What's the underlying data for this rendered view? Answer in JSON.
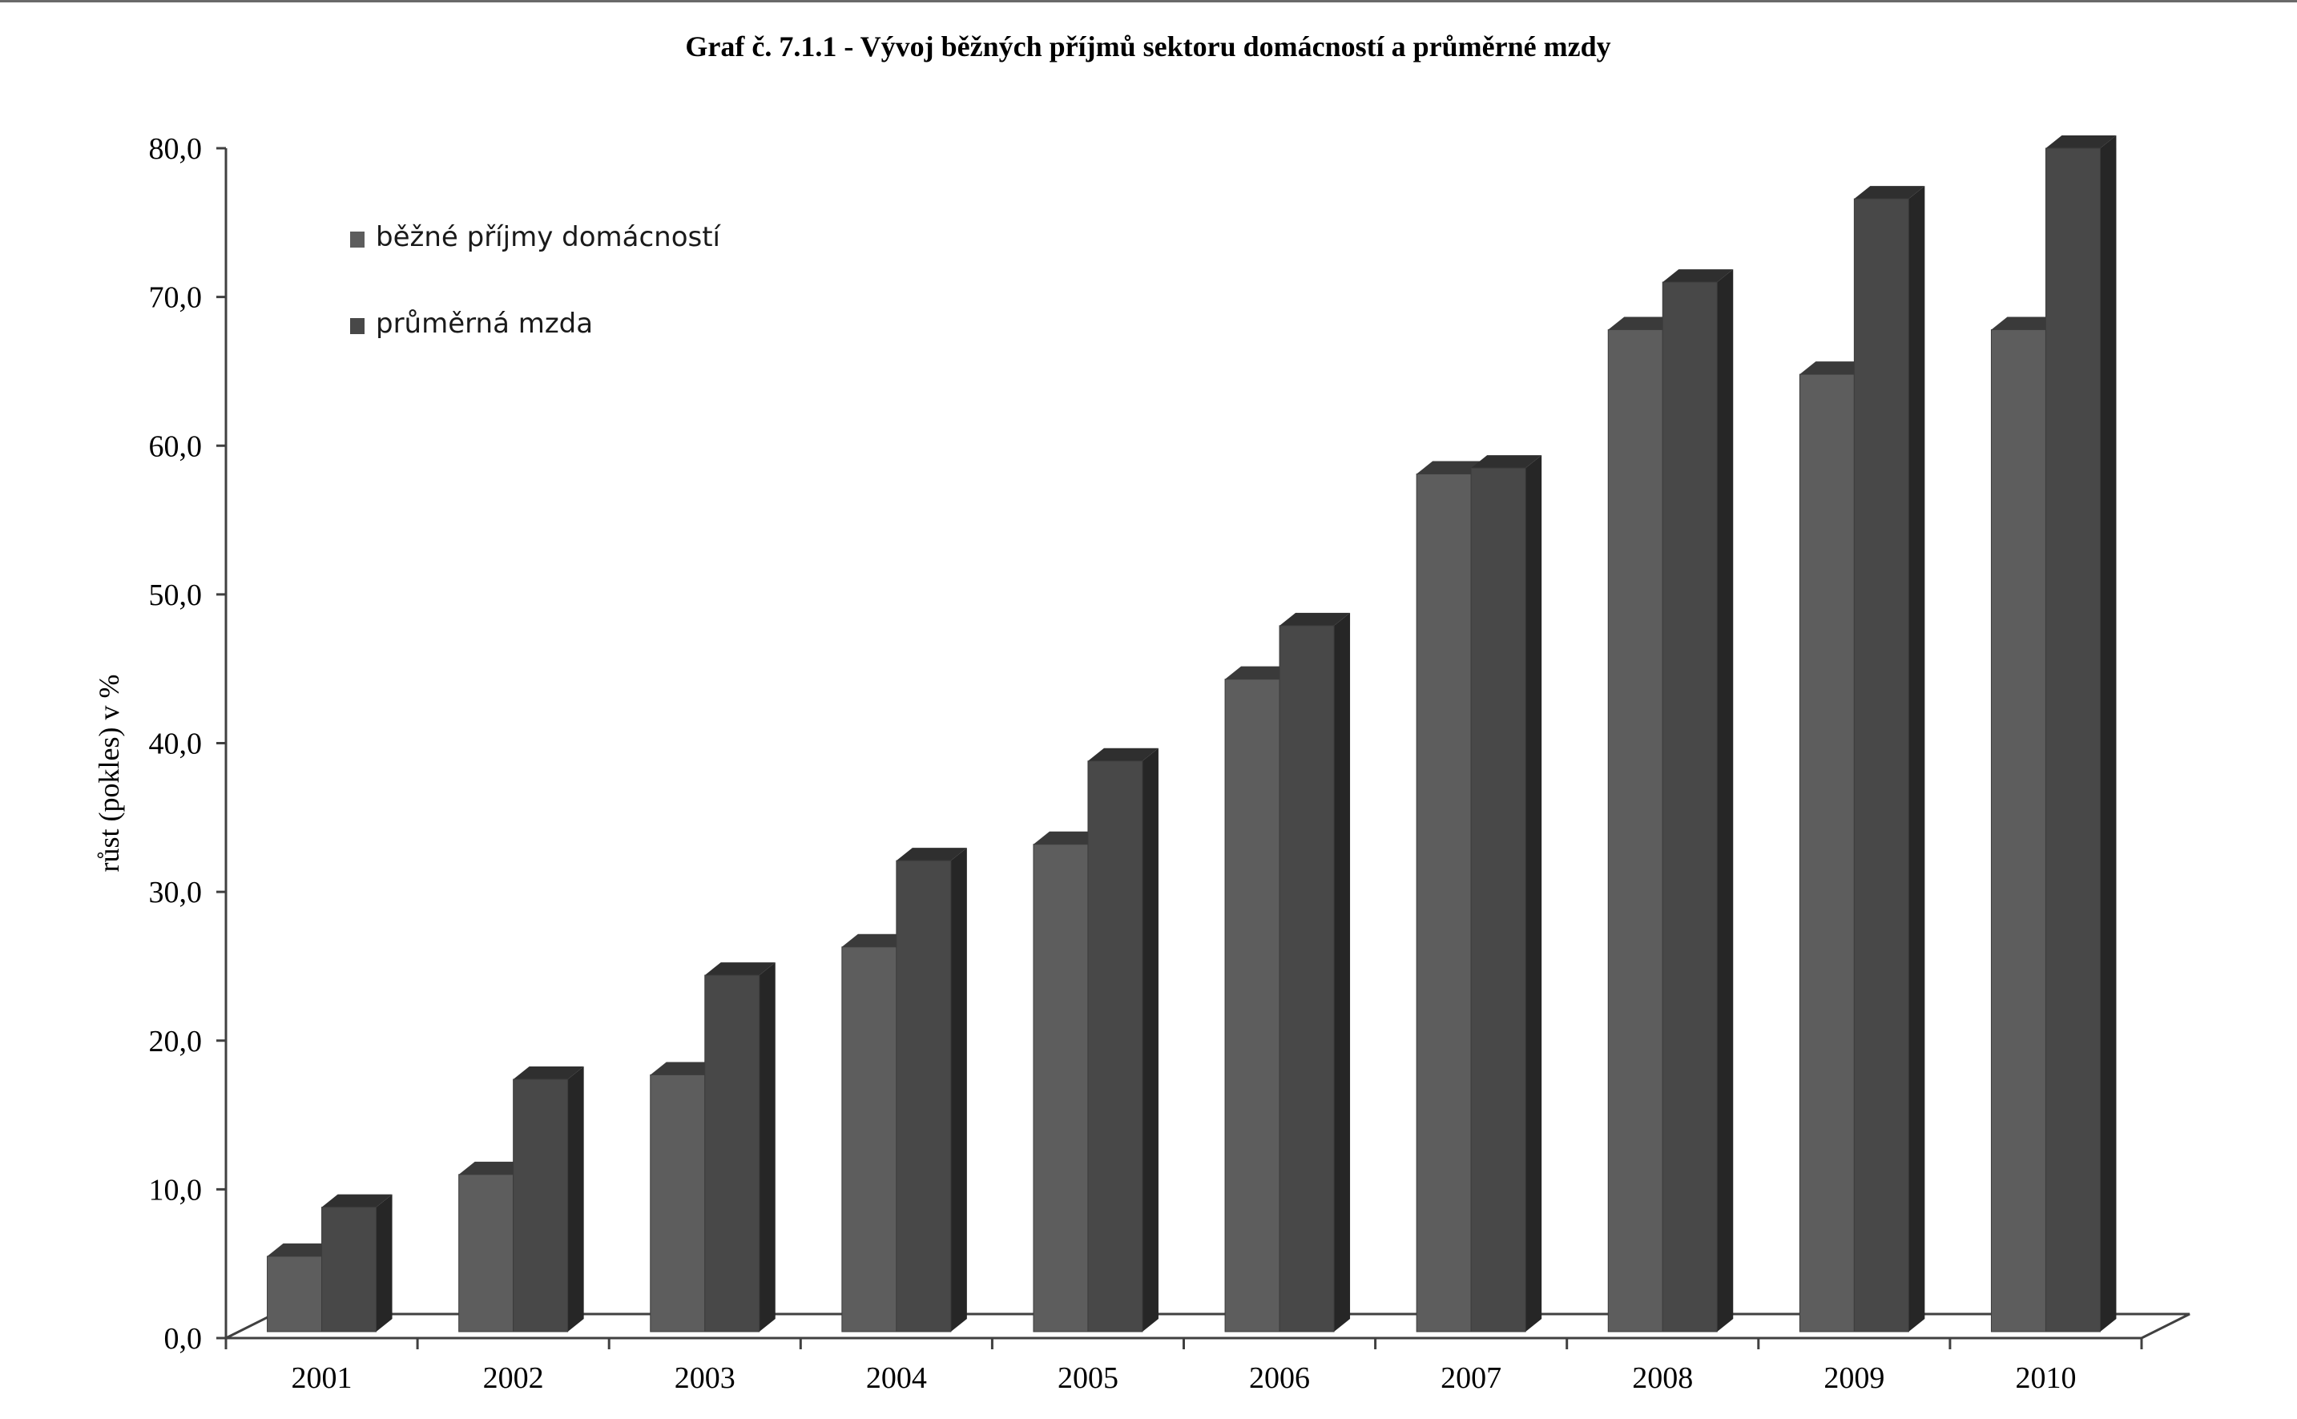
{
  "chart_data": {
    "type": "bar",
    "title": "Graf č. 7.1.1 - Vývoj běžných příjmů sektoru domácností a průměrné mzdy",
    "xlabel": "",
    "ylabel": "růst (pokles) v %",
    "categories": [
      "2001",
      "2002",
      "2003",
      "2004",
      "2005",
      "2006",
      "2007",
      "2008",
      "2009",
      "2010"
    ],
    "series": [
      {
        "name": "běžné příjmy domácností",
        "color": "#5c5c5c",
        "values": [
          5.5,
          11.0,
          17.7,
          26.3,
          33.2,
          44.3,
          58.1,
          67.8,
          64.8,
          67.8
        ]
      },
      {
        "name": "průměrná mzda",
        "color": "#474747",
        "values": [
          8.8,
          17.4,
          24.4,
          32.1,
          38.8,
          47.9,
          58.5,
          71.0,
          76.6,
          80.0
        ]
      }
    ],
    "ylim": [
      0,
      80
    ],
    "yticks": [
      "0,0",
      "10,0",
      "20,0",
      "30,0",
      "40,0",
      "50,0",
      "60,0",
      "70,0",
      "80,0"
    ],
    "grid": false,
    "legend_position": "top-left",
    "style": "3d-clustered-column"
  }
}
